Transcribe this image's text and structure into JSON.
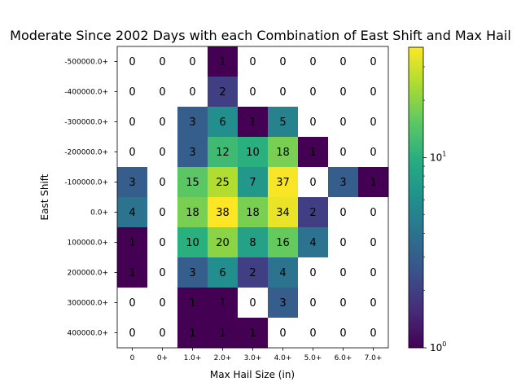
{
  "chart_data": {
    "type": "heatmap",
    "title": "Moderate Since 2002 Days with each Combination of East Shift and Max Hail",
    "xlabel": "Max Hail Size (in)",
    "ylabel": "East Shift",
    "x_categories": [
      "0",
      "0+",
      "1.0+",
      "2.0+",
      "3.0+",
      "4.0+",
      "5.0+",
      "6.0+",
      "7.0+"
    ],
    "y_categories": [
      "-500000.0+",
      "-400000.0+",
      "-300000.0+",
      "-200000.0+",
      "-100000.0+",
      "0.0+",
      "100000.0+",
      "200000.0+",
      "300000.0+",
      "400000.0+"
    ],
    "values": [
      [
        0,
        0,
        0,
        1,
        0,
        0,
        0,
        0,
        0
      ],
      [
        0,
        0,
        0,
        2,
        0,
        0,
        0,
        0,
        0
      ],
      [
        0,
        0,
        3,
        6,
        1,
        5,
        0,
        0,
        0
      ],
      [
        0,
        0,
        3,
        12,
        10,
        18,
        1,
        0,
        0
      ],
      [
        3,
        0,
        15,
        25,
        7,
        37,
        0,
        3,
        1
      ],
      [
        4,
        0,
        18,
        38,
        18,
        34,
        2,
        0,
        0
      ],
      [
        1,
        0,
        10,
        20,
        8,
        16,
        4,
        0,
        0
      ],
      [
        1,
        0,
        3,
        6,
        2,
        4,
        0,
        0,
        0
      ],
      [
        0,
        0,
        1,
        1,
        0,
        3,
        0,
        0,
        0
      ],
      [
        0,
        0,
        1,
        1,
        1,
        0,
        0,
        0,
        0
      ]
    ],
    "color_scale": "log",
    "colormap": "viridis",
    "colorbar": {
      "range": [
        1,
        38
      ],
      "ticks": [
        {
          "value": 1,
          "base": "10",
          "exp": "0"
        },
        {
          "value": 10,
          "base": "10",
          "exp": "1"
        }
      ]
    },
    "zero_cells": "white",
    "grid": false
  }
}
